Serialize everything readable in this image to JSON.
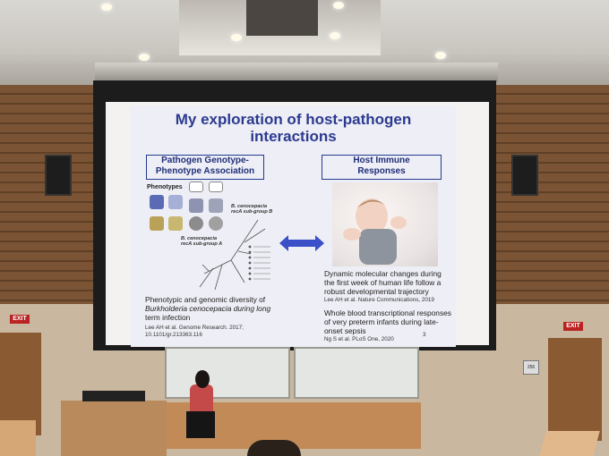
{
  "slide": {
    "title_line1": "My exploration of host-pathogen",
    "title_line2": "interactions",
    "left_box_line1": "Pathogen Genotype-",
    "left_box_line2": "Phenotype Association",
    "right_box_line1": "Host Immune",
    "right_box_line2": "Responses",
    "phenotypes_label": "Phenotypes",
    "subgroup_b": "B. cenocepacia recA sub-group B",
    "subgroup_a": "B. cenocepacia recA sub-group A",
    "left_text_1": "Phenotypic and genomic diversity of",
    "left_text_2": "Burkholderia cenocepacia during long",
    "left_text_3": "term infection",
    "left_cite_1": "Lee AH et al. Genome Research. 2017;",
    "left_cite_2": "10.1101/gr.213363.116",
    "right_text_1_l1": "Dynamic molecular changes during",
    "right_text_1_l2": "the first week of human life follow a",
    "right_text_1_l3": "robust developmental trajectory",
    "right_cite_1": "Lee AH et al. Nature Communications, 2019",
    "right_text_2_l1": "Whole blood transcriptional responses",
    "right_text_2_l2": "of very preterm infants during late-",
    "right_text_2_l3": "onset sepsis",
    "right_cite_2": "Ng S et al. PLoS One, 2020",
    "page_number": "3"
  },
  "room": {
    "exit_left": "EXIT",
    "exit_right": "EXIT",
    "room_number": "256"
  },
  "colors": {
    "title": "#2b3a8f",
    "arrow": "#3b50c8"
  }
}
